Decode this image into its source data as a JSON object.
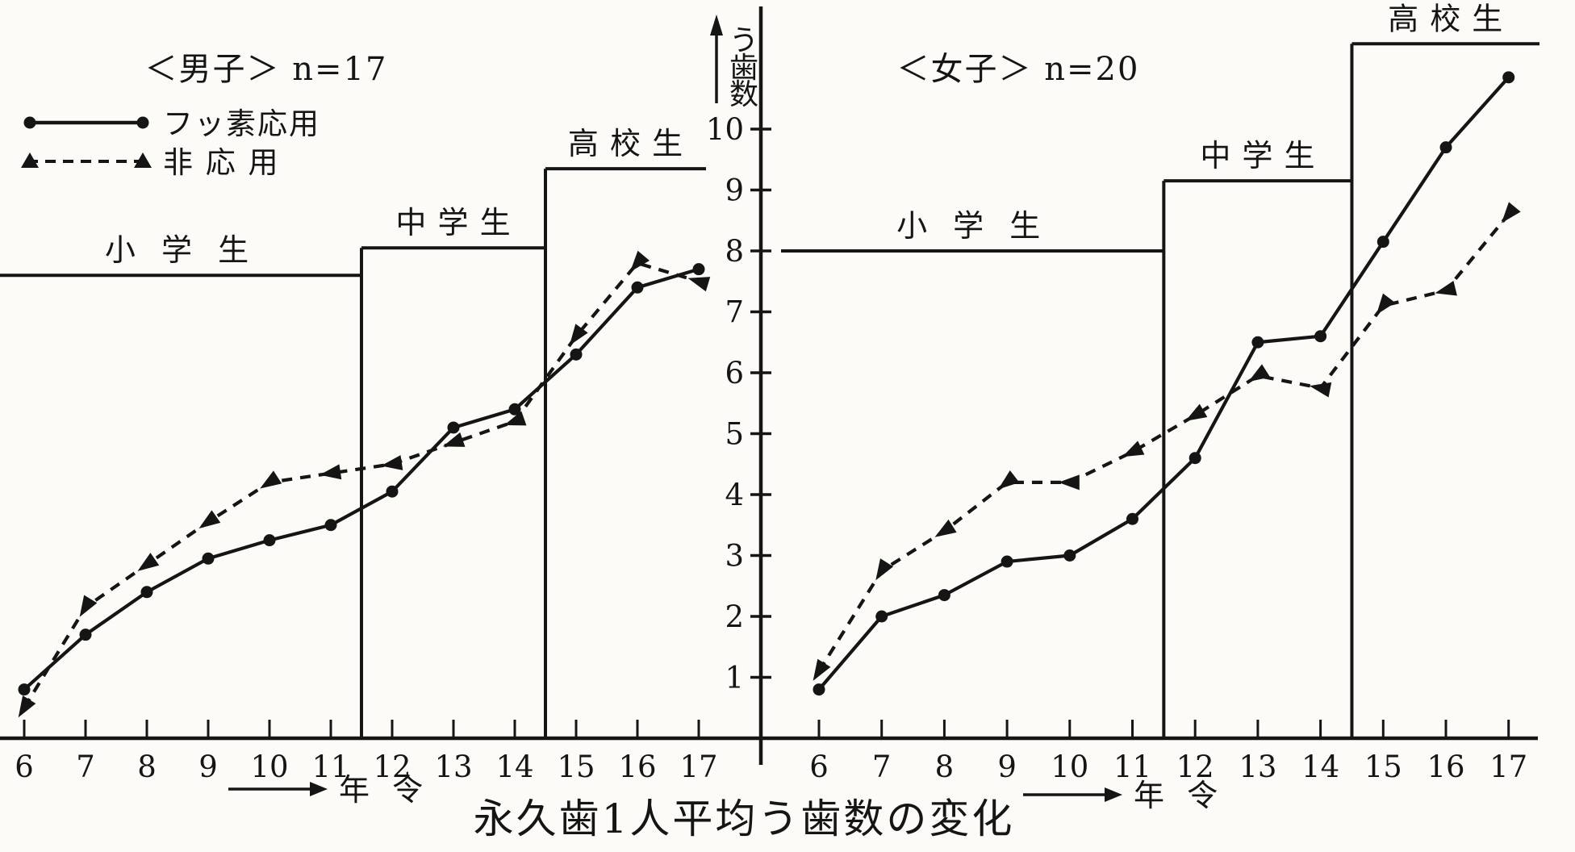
{
  "figure": {
    "caption": "永久歯1人平均う歯数の変化",
    "y_axis_label": "う歯数",
    "y_axis_label_chars": [
      "う",
      "歯",
      "数"
    ],
    "x_axis_label": "年 令",
    "ink_color": "#151515",
    "paper_color": "#fcfbf7"
  },
  "legend": {
    "items": [
      {
        "label": "フッ素応用",
        "line": "solid",
        "marker": "circle"
      },
      {
        "label": "非 応 用",
        "line": "dashed",
        "marker": "triangle"
      }
    ]
  },
  "chart_data": [
    {
      "type": "line",
      "panel": "boys",
      "title": "＜男子＞ n=17",
      "n": 17,
      "x": [
        6,
        7,
        8,
        9,
        10,
        11,
        12,
        13,
        14,
        15,
        16,
        17
      ],
      "x_tick_labels": [
        "6",
        "7",
        "8",
        "9",
        "10",
        "11",
        "12",
        "13",
        "14",
        "15",
        "16",
        "17"
      ],
      "xlabel": "年令",
      "ylabel": "う歯数",
      "ylim": [
        0,
        11.5
      ],
      "y_ticks": [
        1,
        2,
        3,
        4,
        5,
        6,
        7,
        8,
        9,
        10
      ],
      "grid": false,
      "series": [
        {
          "name": "フッ素応用",
          "style": "solid",
          "marker": "circle",
          "values": [
            0.8,
            1.7,
            2.4,
            2.95,
            3.25,
            3.5,
            4.05,
            5.1,
            5.4,
            6.3,
            7.4,
            7.7
          ]
        },
        {
          "name": "非応用",
          "style": "dashed",
          "marker": "triangle",
          "values": [
            0.5,
            2.15,
            2.85,
            3.55,
            4.2,
            4.35,
            4.5,
            4.85,
            5.2,
            6.6,
            7.8,
            7.5
          ]
        }
      ],
      "school_bands": [
        {
          "label": "小 学 生",
          "from_age": null,
          "to_age": 11.5,
          "top_value": 7.6
        },
        {
          "label": "中 学 生",
          "from_age": 11.5,
          "to_age": 14.5,
          "top_value": 8.05
        },
        {
          "label": "高 校 生",
          "from_age": 14.5,
          "to_age": null,
          "top_value": 9.35
        }
      ]
    },
    {
      "type": "line",
      "panel": "girls",
      "title": "＜女子＞ n=20",
      "n": 20,
      "x": [
        6,
        7,
        8,
        9,
        10,
        11,
        12,
        13,
        14,
        15,
        16,
        17
      ],
      "x_tick_labels": [
        "6",
        "7",
        "8",
        "9",
        "10",
        "11",
        "12",
        "13",
        "14",
        "15",
        "16",
        "17"
      ],
      "xlabel": "年令",
      "ylabel": "う歯数",
      "ylim": [
        0,
        11.5
      ],
      "y_ticks": [
        1,
        2,
        3,
        4,
        5,
        6,
        7,
        8,
        9,
        10
      ],
      "grid": false,
      "series": [
        {
          "name": "フッ素応用",
          "style": "solid",
          "marker": "circle",
          "values": [
            0.8,
            2.0,
            2.35,
            2.9,
            3.0,
            3.6,
            4.6,
            6.5,
            6.6,
            8.15,
            9.7,
            10.85
          ]
        },
        {
          "name": "非応用",
          "style": "dashed",
          "marker": "triangle",
          "values": [
            1.1,
            2.75,
            3.4,
            4.2,
            4.2,
            4.7,
            5.3,
            5.95,
            5.75,
            7.1,
            7.35,
            8.6
          ]
        }
      ],
      "school_bands": [
        {
          "label": "小 学 生",
          "from_age": null,
          "to_age": 11.5,
          "top_value": 8.0
        },
        {
          "label": "中 学 生",
          "from_age": 11.5,
          "to_age": 14.5,
          "top_value": 9.15
        },
        {
          "label": "高 校 生",
          "from_age": 14.5,
          "to_age": null,
          "top_value": 11.4
        }
      ]
    }
  ],
  "y_axis_tick_labels": [
    "1",
    "2",
    "3",
    "4",
    "5",
    "6",
    "7",
    "8",
    "9",
    "10"
  ]
}
